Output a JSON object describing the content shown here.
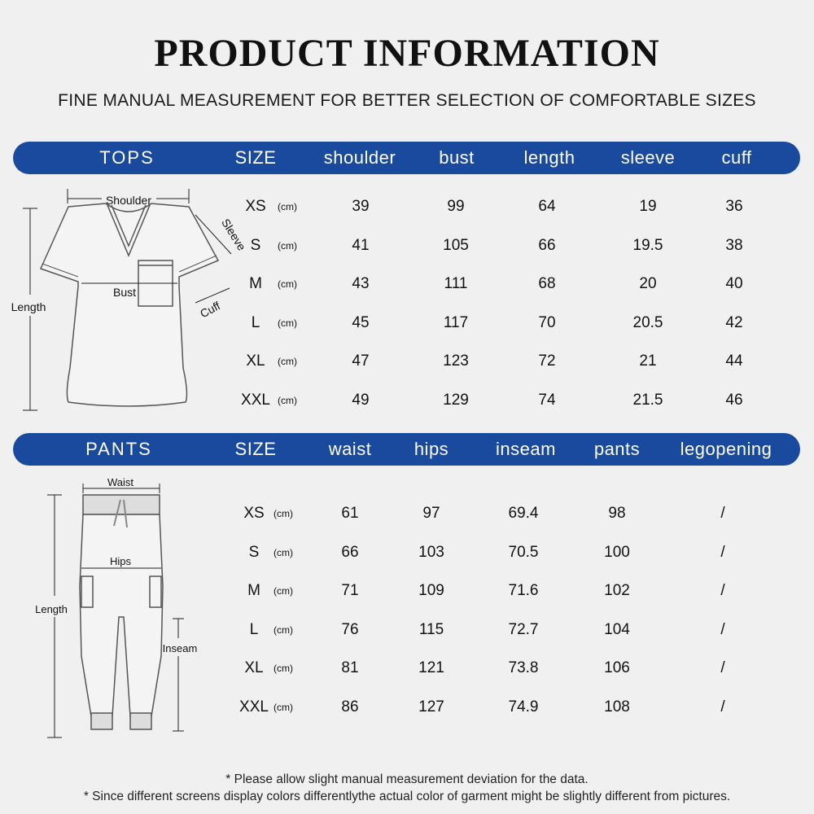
{
  "header": {
    "title": "PRODUCT INFORMATION",
    "subtitle": "FINE MANUAL MEASUREMENT FOR BETTER SELECTION OF COMFORTABLE SIZES"
  },
  "tops": {
    "category": "TOPS",
    "size_header": "SIZE",
    "columns": [
      "shoulder",
      "bust",
      "length",
      "sleeve",
      "cuff"
    ],
    "unit": "(cm)",
    "rows": [
      {
        "size": "XS",
        "values": [
          "39",
          "99",
          "64",
          "19",
          "36"
        ]
      },
      {
        "size": "S",
        "values": [
          "41",
          "105",
          "66",
          "19.5",
          "38"
        ]
      },
      {
        "size": "M",
        "values": [
          "43",
          "111",
          "68",
          "20",
          "40"
        ]
      },
      {
        "size": "L",
        "values": [
          "45",
          "117",
          "70",
          "20.5",
          "42"
        ]
      },
      {
        "size": "XL",
        "values": [
          "47",
          "123",
          "72",
          "21",
          "44"
        ]
      },
      {
        "size": "XXL",
        "values": [
          "49",
          "129",
          "74",
          "21.5",
          "46"
        ]
      }
    ],
    "diagram_labels": {
      "shoulder": "Shoulder",
      "sleeve": "Sleeve",
      "bust": "Bust",
      "cuff": "Cuff",
      "length": "Length"
    }
  },
  "pants": {
    "category": "PANTS",
    "size_header": "SIZE",
    "columns": [
      "waist",
      "hips",
      "inseam",
      "pants",
      "legopening"
    ],
    "unit": "(cm)",
    "rows": [
      {
        "size": "XS",
        "values": [
          "61",
          "97",
          "69.4",
          "98",
          "/"
        ]
      },
      {
        "size": "S",
        "values": [
          "66",
          "103",
          "70.5",
          "100",
          "/"
        ]
      },
      {
        "size": "M",
        "values": [
          "71",
          "109",
          "71.6",
          "102",
          "/"
        ]
      },
      {
        "size": "L",
        "values": [
          "76",
          "115",
          "72.7",
          "104",
          "/"
        ]
      },
      {
        "size": "XL",
        "values": [
          "81",
          "121",
          "73.8",
          "106",
          "/"
        ]
      },
      {
        "size": "XXL",
        "values": [
          "86",
          "127",
          "74.9",
          "108",
          "/"
        ]
      }
    ],
    "diagram_labels": {
      "waist": "Waist",
      "hips": "Hips",
      "length": "Length",
      "inseam": "Inseam"
    }
  },
  "notes": [
    "* Please allow slight manual measurement deviation for the data.",
    "* Since different screens display colors differentlythe actual color of garment might be slightly  different from pictures."
  ],
  "colors": {
    "header_bar": "#1a4a9e",
    "background": "#f0f0f0"
  }
}
